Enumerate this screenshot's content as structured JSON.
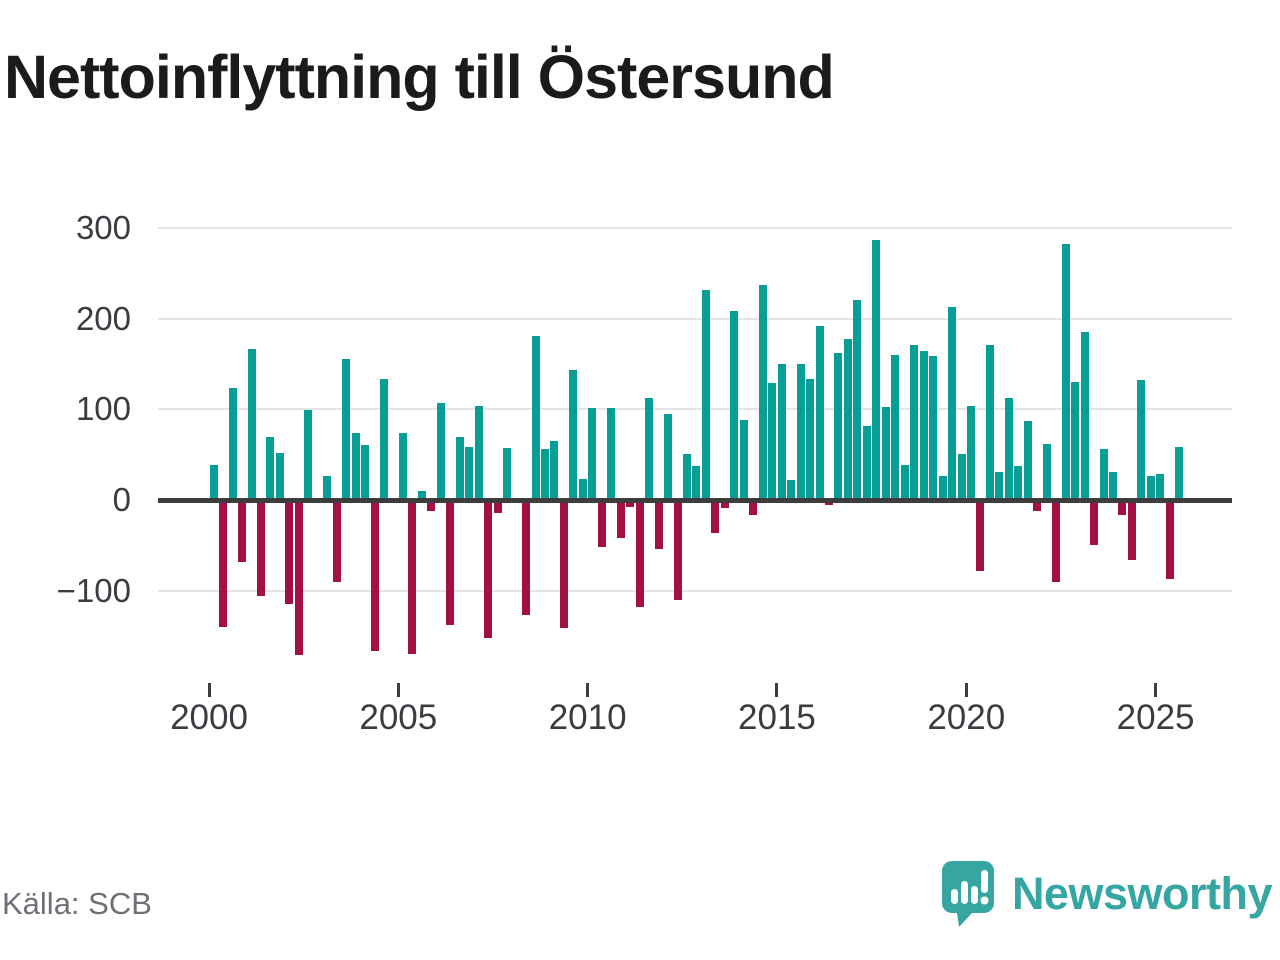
{
  "title": "Nettoinflyttning till Östersund",
  "source": "Källa: SCB",
  "logo": {
    "text": "Newsworthy"
  },
  "colors": {
    "positive": "#079e96",
    "negative": "#a31045",
    "zero_line": "#3c3c3c",
    "gridline": "#e4e4e4",
    "axis_text": "#3b3b42",
    "title_text": "#1b1b1b",
    "source_text": "#6f6f78",
    "logo_teal": "#35a6a1"
  },
  "chart_data": {
    "type": "bar",
    "title": "Nettoinflyttning till Östersund",
    "xlabel": "",
    "ylabel": "",
    "grid": "horizontal",
    "legend": "none",
    "ylim": [
      -180,
      310
    ],
    "yticks": [
      300,
      200,
      100,
      0,
      -100
    ],
    "ytick_labels": [
      "300",
      "200",
      "100",
      "0",
      "−100"
    ],
    "xtick_labels": [
      "2000",
      "2005",
      "2010",
      "2015",
      "2020",
      "2025"
    ],
    "categories": [
      "2000 Q1",
      "2000 Q2",
      "2000 Q3",
      "2000 Q4",
      "2001 Q1",
      "2001 Q2",
      "2001 Q3",
      "2001 Q4",
      "2002 Q1",
      "2002 Q2",
      "2002 Q3",
      "2002 Q4",
      "2003 Q1",
      "2003 Q2",
      "2003 Q3",
      "2003 Q4",
      "2004 Q1",
      "2004 Q2",
      "2004 Q3",
      "2004 Q4",
      "2005 Q1",
      "2005 Q2",
      "2005 Q3",
      "2005 Q4",
      "2006 Q1",
      "2006 Q2",
      "2006 Q3",
      "2006 Q4",
      "2007 Q1",
      "2007 Q2",
      "2007 Q3",
      "2007 Q4",
      "2008 Q1",
      "2008 Q2",
      "2008 Q3",
      "2008 Q4",
      "2009 Q1",
      "2009 Q2",
      "2009 Q3",
      "2009 Q4",
      "2010 Q1",
      "2010 Q2",
      "2010 Q3",
      "2010 Q4",
      "2011 Q1",
      "2011 Q2",
      "2011 Q3",
      "2011 Q4",
      "2012 Q1",
      "2012 Q2",
      "2012 Q3",
      "2012 Q4",
      "2013 Q1",
      "2013 Q2",
      "2013 Q3",
      "2013 Q4",
      "2014 Q1",
      "2014 Q2",
      "2014 Q3",
      "2014 Q4",
      "2015 Q1",
      "2015 Q2",
      "2015 Q3",
      "2015 Q4",
      "2016 Q1",
      "2016 Q2",
      "2016 Q3",
      "2016 Q4",
      "2017 Q1",
      "2017 Q2",
      "2017 Q3",
      "2017 Q4",
      "2018 Q1",
      "2018 Q2",
      "2018 Q3",
      "2018 Q4",
      "2019 Q1",
      "2019 Q2",
      "2019 Q3",
      "2019 Q4",
      "2020 Q1",
      "2020 Q2",
      "2020 Q3",
      "2020 Q4",
      "2021 Q1",
      "2021 Q2",
      "2021 Q3",
      "2021 Q4",
      "2022 Q1",
      "2022 Q2",
      "2022 Q3",
      "2022 Q4",
      "2023 Q1",
      "2023 Q2",
      "2023 Q3",
      "2023 Q4",
      "2024 Q1",
      "2024 Q2",
      "2024 Q3",
      "2024 Q4",
      "2025 Q1",
      "2025 Q2",
      "2025 Q3"
    ],
    "values": [
      39,
      -140,
      123,
      -68,
      166,
      -106,
      69,
      52,
      -115,
      -171,
      99,
      0,
      26,
      -90,
      156,
      74,
      61,
      -167,
      133,
      0,
      74,
      -170,
      10,
      -12,
      107,
      -138,
      70,
      58,
      104,
      -152,
      -14,
      57,
      0,
      -127,
      181,
      56,
      65,
      -141,
      143,
      23,
      101,
      -52,
      101,
      -42,
      -8,
      -118,
      113,
      -54,
      95,
      -110,
      51,
      37,
      232,
      -36,
      -9,
      208,
      88,
      -16,
      237,
      129,
      150,
      22,
      150,
      133,
      192,
      -6,
      162,
      178,
      221,
      82,
      287,
      102,
      160,
      39,
      171,
      164,
      159,
      27,
      213,
      51,
      104,
      -78,
      171,
      31,
      113,
      38,
      87,
      -12,
      62,
      -90,
      282,
      130,
      185,
      -50,
      56,
      31,
      -17,
      -66,
      132,
      26,
      29,
      -87,
      58
    ]
  }
}
